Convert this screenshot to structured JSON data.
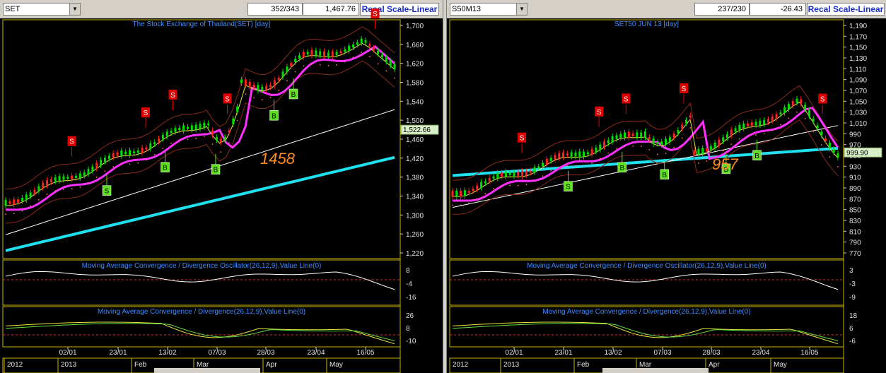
{
  "left": {
    "symbol": "SET",
    "bar_count": "352/343",
    "last_value": "1,467.76",
    "scale_button": "Recal Scale-Linear",
    "main_title": "The Stock Exchange of Thailand(SET) [day]",
    "price_ticks": [
      "1,700",
      "1,660",
      "1,620",
      "1,580",
      "1,540",
      "1,500",
      "1,460",
      "1,420",
      "1,380",
      "1,340",
      "1,300",
      "1,260",
      "1,220"
    ],
    "current_price_label": "1,522.66",
    "annotation": "1458",
    "osc_title": "Moving Average Convergence / Divergence Oscillator(26,12,9),Value Line(0)",
    "osc_ticks": [
      "8",
      "-4",
      "-16"
    ],
    "macd_title": "Moving Average Convergence / Divergence(26,12,9),Value Line(0)",
    "macd_ticks": [
      "26",
      "8",
      "-10"
    ],
    "date_ticks": [
      "02/01",
      "23/01",
      "13/02",
      "07/03",
      "28/03",
      "23/04",
      "16/05"
    ],
    "month_labels": [
      "2012",
      "2013",
      "Feb",
      "Mar",
      "Apr",
      "May"
    ],
    "signals": [
      "S",
      "S",
      "S",
      "S",
      "S",
      "S",
      "B",
      "B",
      "B",
      "B",
      "B"
    ]
  },
  "right": {
    "symbol": "S50M13",
    "bar_count": "237/230",
    "last_value": "-26.43",
    "scale_button": "Recal Scale-Linear",
    "main_title": "SET50 JUN 13  [day]",
    "price_ticks": [
      "1,190",
      "1,170",
      "1,150",
      "1,130",
      "1,110",
      "1,090",
      "1,070",
      "1,050",
      "1,030",
      "1,010",
      "990",
      "970",
      "950",
      "930",
      "910",
      "890",
      "870",
      "850",
      "830",
      "810",
      "790",
      "770"
    ],
    "current_price_label": "999.90",
    "annotation": "957",
    "osc_title": "Moving Average Convergence / Divergence Oscillator(26,12,9),Value Line(0)",
    "osc_ticks": [
      "3",
      "-3",
      "-9"
    ],
    "macd_title": "Moving Average Convergence / Divergence(26,12,9),Value Line(0)",
    "macd_ticks": [
      "18",
      "6",
      "-6"
    ],
    "date_ticks": [
      "02/01",
      "23/01",
      "13/02",
      "07/03",
      "28/03",
      "23/04",
      "16/05"
    ],
    "month_labels": [
      "2012",
      "2013",
      "Feb",
      "Mar",
      "Apr",
      "May"
    ],
    "signals": [
      "S",
      "S",
      "S",
      "S",
      "S",
      "S",
      "B",
      "B",
      "B",
      "B",
      "B"
    ]
  },
  "colors": {
    "axis_border": "#c8b400",
    "title_blue": "#3c8cff",
    "candle_up": "#00e000",
    "candle_down": "#ff2020",
    "ma_magenta": "#ff30ff",
    "ma_cyan": "#20e0f0",
    "ma_white": "#ffffff",
    "sell_signal": "#e00000",
    "buy_signal": "#60e020",
    "annotation": "#ff8c20"
  }
}
